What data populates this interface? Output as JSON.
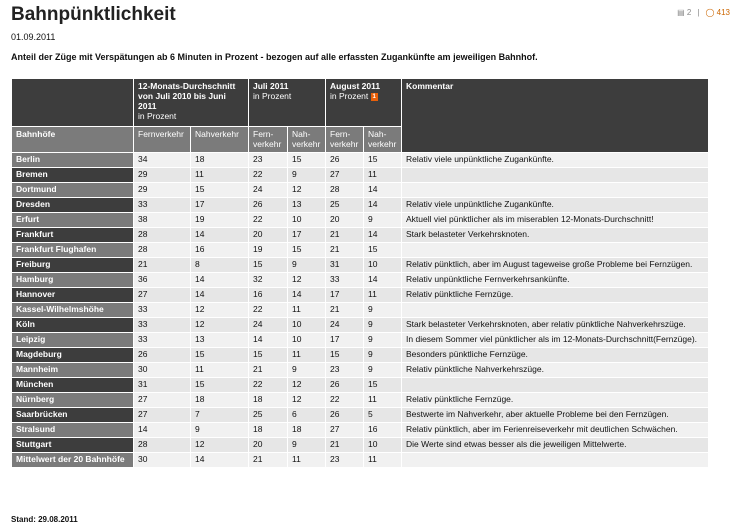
{
  "title": "Bahnpünktlichkeit",
  "date": "01.09.2011",
  "description": "Anteil der Züge mit Verspätungen ab 6 Minuten in Prozent - bezogen auf alle erfassten Zugankünfte am jeweiligen Bahnhof.",
  "meta": {
    "comments": "2",
    "views": "413"
  },
  "headers": {
    "avg": "12-Monats-Durchschnitt von Juli 2010 bis Juni 2011",
    "avg_sub": "in Prozent",
    "jul": "Juli 2011",
    "jul_sub": "in Prozent",
    "aug": "August 2011",
    "aug_sub": "in Prozent",
    "aug_badge": "1",
    "comment": "Kommentar",
    "station": "Bahnhöfe",
    "fern": "Fernverkehr",
    "nah": "Nahverkehr",
    "fern_short": "Fern-verkehr",
    "nah_short": "Nah-verkehr"
  },
  "rows": [
    [
      "Berlin",
      "34",
      "18",
      "23",
      "15",
      "26",
      "15",
      "Relativ viele unpünktliche Zugankünfte."
    ],
    [
      "Bremen",
      "29",
      "11",
      "22",
      "9",
      "27",
      "11",
      ""
    ],
    [
      "Dortmund",
      "29",
      "15",
      "24",
      "12",
      "28",
      "14",
      ""
    ],
    [
      "Dresden",
      "33",
      "17",
      "26",
      "13",
      "25",
      "14",
      "Relativ viele unpünktliche Zugankünfte."
    ],
    [
      "Erfurt",
      "38",
      "19",
      "22",
      "10",
      "20",
      "9",
      "Aktuell viel pünktlicher als im miserablen 12-Monats-Durchschnitt!"
    ],
    [
      "Frankfurt",
      "28",
      "14",
      "20",
      "17",
      "21",
      "14",
      "Stark belasteter Verkehrsknoten."
    ],
    [
      "Frankfurt Flughafen",
      "28",
      "16",
      "19",
      "15",
      "21",
      "15",
      ""
    ],
    [
      "Freiburg",
      "21",
      "8",
      "15",
      "9",
      "31",
      "10",
      "Relativ pünktlich, aber im August tageweise große Probleme bei Fernzügen."
    ],
    [
      "Hamburg",
      "36",
      "14",
      "32",
      "12",
      "33",
      "14",
      "Relativ unpünktliche Fernverkehrsankünfte."
    ],
    [
      "Hannover",
      "27",
      "14",
      "16",
      "14",
      "17",
      "11",
      "Relativ pünktliche Fernzüge."
    ],
    [
      "Kassel-Wilhelmshöhe",
      "33",
      "12",
      "22",
      "11",
      "21",
      "9",
      ""
    ],
    [
      "Köln",
      "33",
      "12",
      "24",
      "10",
      "24",
      "9",
      "Stark belasteter Verkehrsknoten, aber relativ pünktliche Nahverkehrszüge."
    ],
    [
      "Leipzig",
      "33",
      "13",
      "14",
      "10",
      "17",
      "9",
      "In diesem Sommer viel pünktlicher als im 12-Monats-Durchschnitt(Fernzüge)."
    ],
    [
      "Magdeburg",
      "26",
      "15",
      "15",
      "11",
      "15",
      "9",
      "Besonders pünktliche Fernzüge."
    ],
    [
      "Mannheim",
      "30",
      "11",
      "21",
      "9",
      "23",
      "9",
      "Relativ pünktliche Nahverkehrszüge."
    ],
    [
      "München",
      "31",
      "15",
      "22",
      "12",
      "26",
      "15",
      ""
    ],
    [
      "Nürnberg",
      "27",
      "18",
      "18",
      "12",
      "22",
      "11",
      "Relativ pünktliche Fernzüge."
    ],
    [
      "Saarbrücken",
      "27",
      "7",
      "25",
      "6",
      "26",
      "5",
      "Bestwerte im Nahverkehr, aber aktuelle Probleme bei den Fernzügen."
    ],
    [
      "Stralsund",
      "14",
      "9",
      "18",
      "18",
      "27",
      "16",
      "Relativ pünktlich, aber im Ferienreiseverkehr mit deutlichen Schwächen."
    ],
    [
      "Stuttgart",
      "28",
      "12",
      "20",
      "9",
      "21",
      "10",
      "Die Werte sind etwas besser als die jeweiligen Mittelwerte."
    ],
    [
      "Mittelwert der 20 Bahnhöfe",
      "30",
      "14",
      "21",
      "11",
      "23",
      "11",
      ""
    ]
  ],
  "footer": "Stand: 29.08.2011"
}
